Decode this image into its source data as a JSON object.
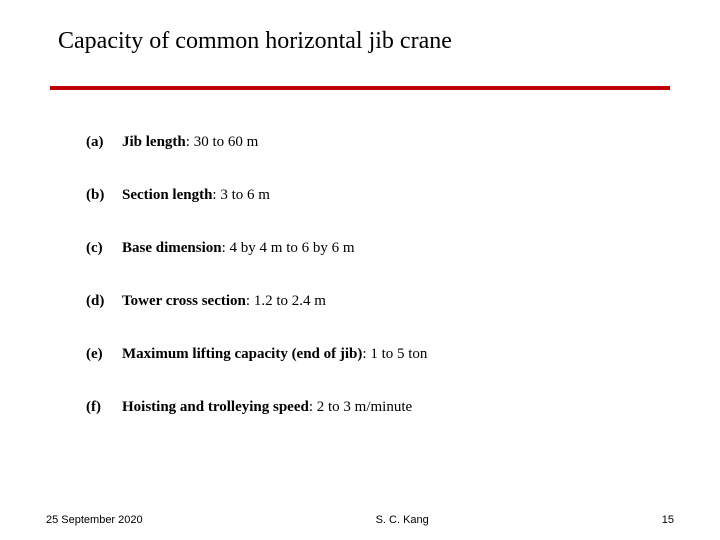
{
  "title": "Capacity of common horizontal jib crane",
  "hr_color": "#c00000",
  "items": [
    {
      "marker": "(a)",
      "label": "Jib length",
      "sep": ": ",
      "value": "30 to 60 m"
    },
    {
      "marker": "(b)",
      "label": "Section length",
      "sep": ": ",
      "value": "3 to 6 m"
    },
    {
      "marker": "(c)",
      "label": "Base dimension",
      "sep": ": ",
      "value": "4 by 4 m to 6 by 6 m"
    },
    {
      "marker": "(d)",
      "label": "Tower cross section",
      "sep": ": ",
      "value": "1.2 to 2.4 m"
    },
    {
      "marker": "(e)",
      "label": "Maximum lifting capacity (end of jib)",
      "sep": ": ",
      "value": "1 to 5 ton"
    },
    {
      "marker": "(f)",
      "label": "Hoisting and trolleying speed",
      "sep": ": ",
      "value": "2 to 3 m/minute"
    }
  ],
  "footer": {
    "date": "25 September 2020",
    "author": "S. C. Kang",
    "page": "15"
  },
  "fonts": {
    "title_size": 24,
    "item_size": 15,
    "footer_size": 11
  },
  "colors": {
    "bg": "#ffffff",
    "text": "#000000",
    "accent": "#c00000"
  }
}
